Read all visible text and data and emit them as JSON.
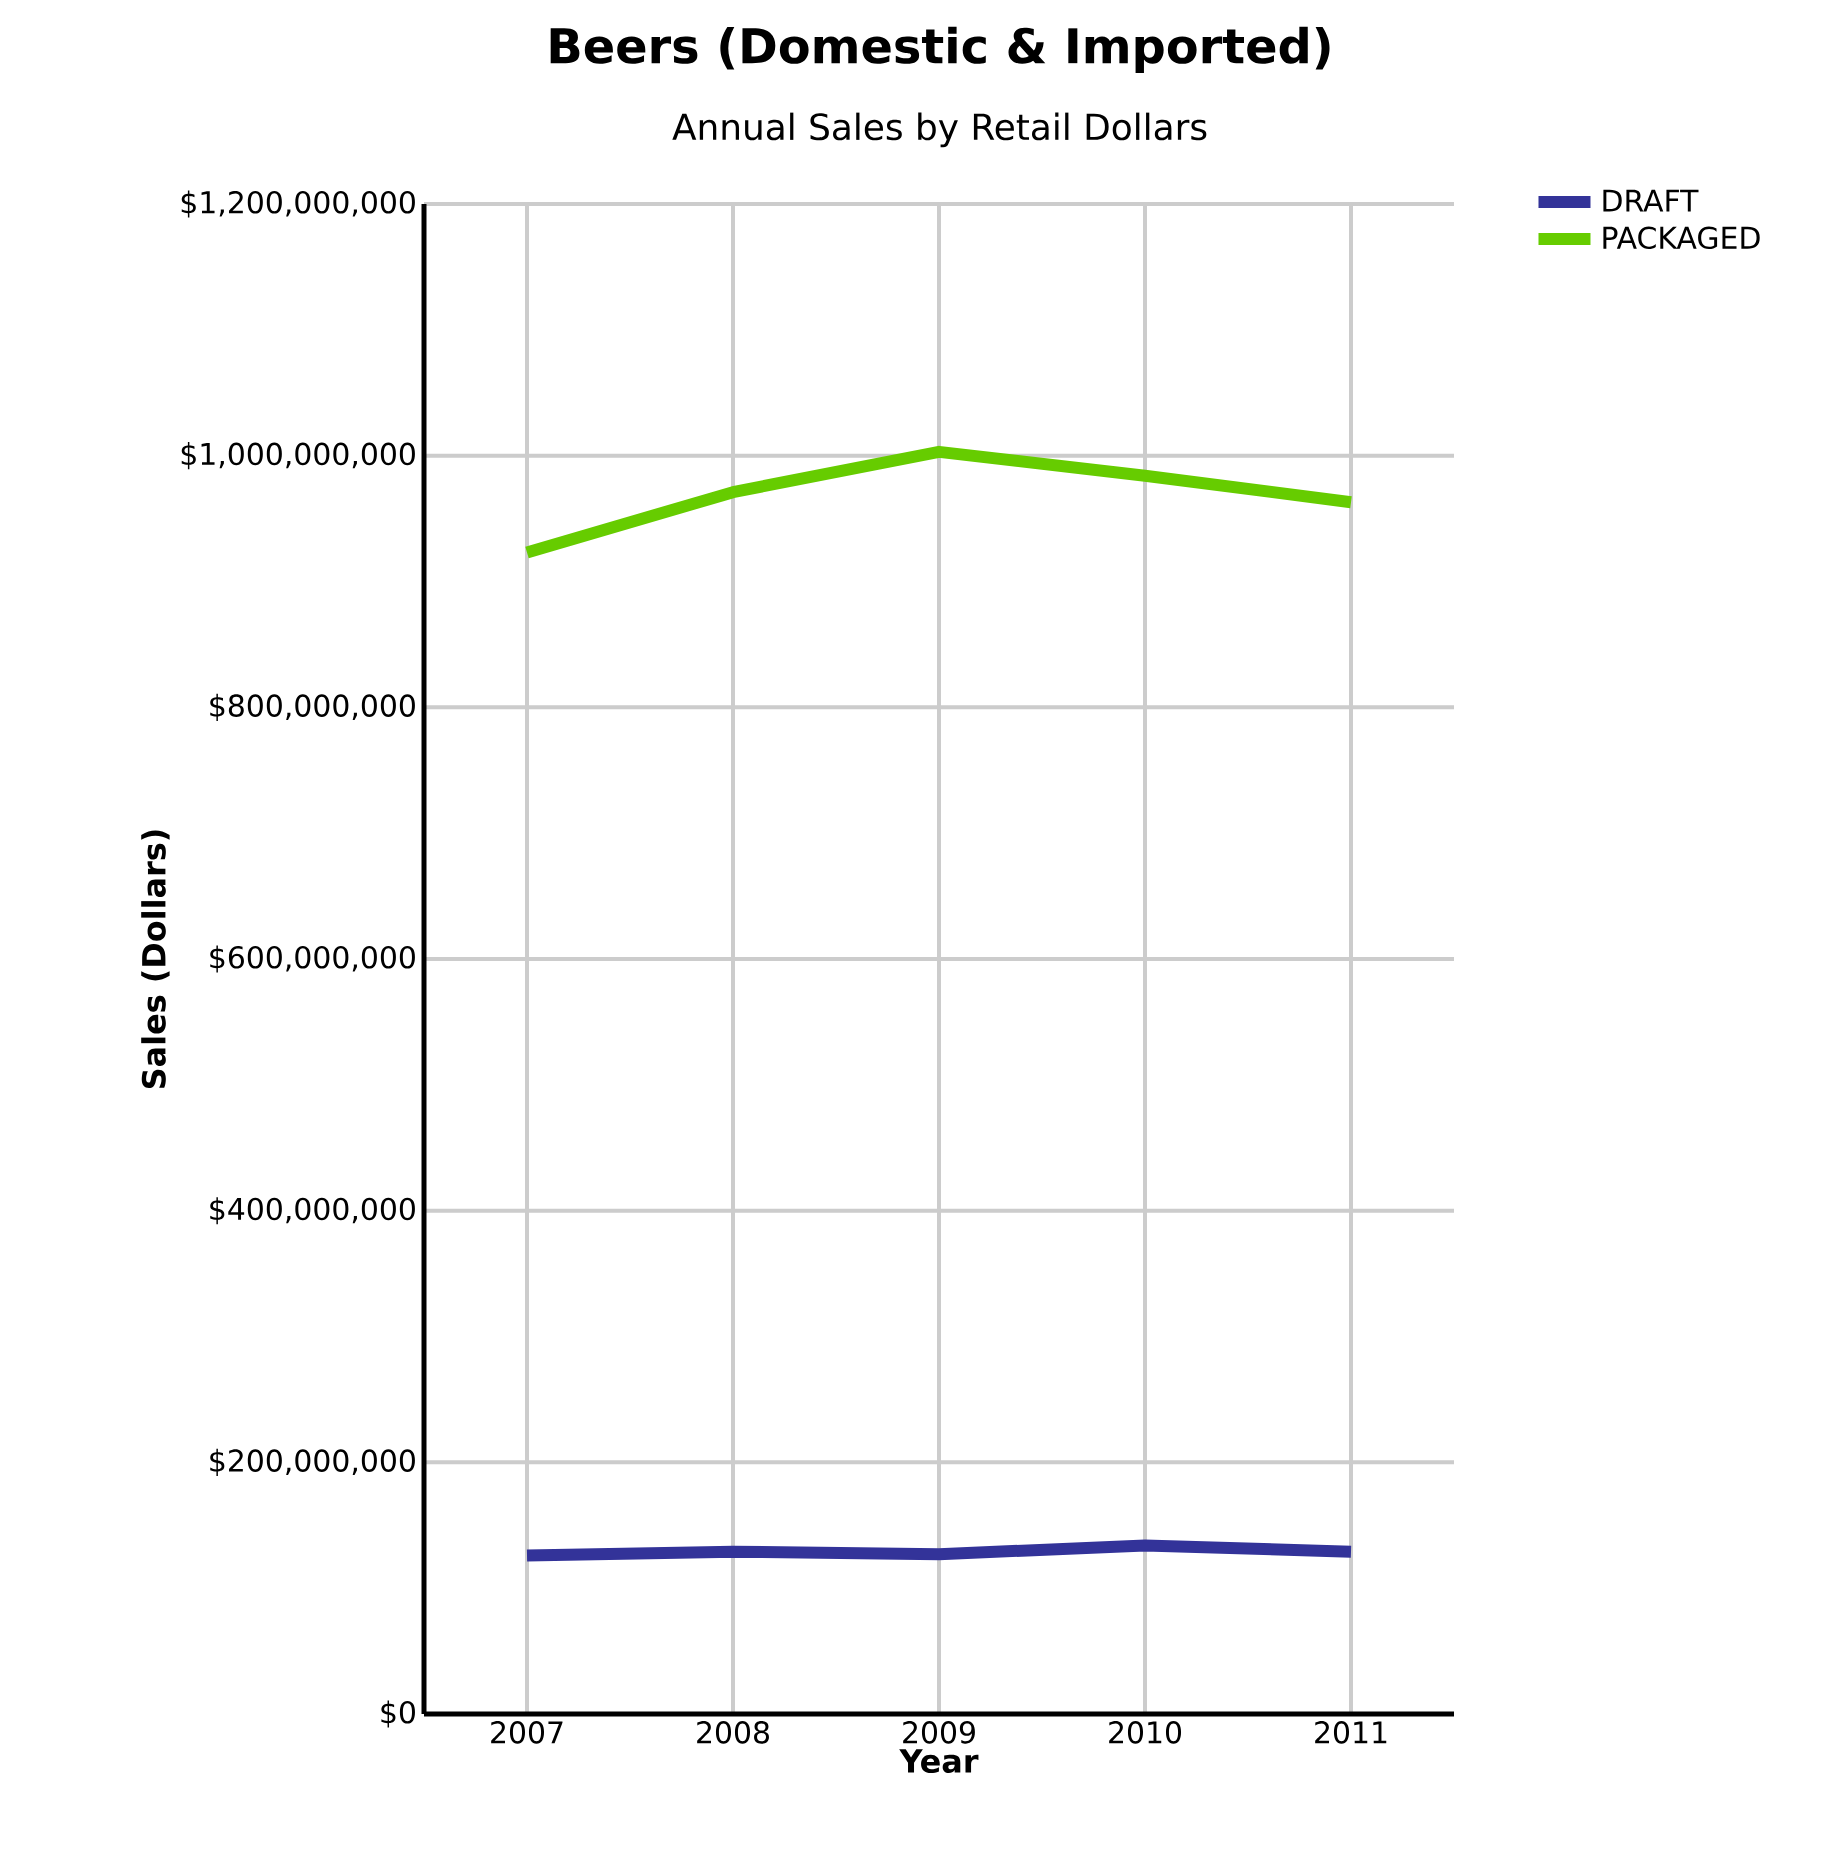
{
  "chart_data": {
    "type": "line",
    "title": "Beers (Domestic & Imported)",
    "subtitle": "Annual Sales by Retail Dollars",
    "xlabel": "Year",
    "ylabel": "Sales (Dollars)",
    "categories": [
      "2007",
      "2008",
      "2009",
      "2010",
      "2011"
    ],
    "series": [
      {
        "name": "DRAFT",
        "color": "#333399",
        "values": [
          126000000,
          129000000,
          127000000,
          134000000,
          129000000
        ]
      },
      {
        "name": "PACKAGED",
        "color": "#66cc00",
        "values": [
          923000000,
          971000000,
          1003000000,
          984000000,
          963000000
        ]
      }
    ],
    "ylim": [
      0,
      1200000000
    ],
    "yticks": [
      {
        "value": 0,
        "label": "$0"
      },
      {
        "value": 200000000,
        "label": "$200,000,000"
      },
      {
        "value": 400000000,
        "label": "$400,000,000"
      },
      {
        "value": 600000000,
        "label": "$600,000,000"
      },
      {
        "value": 800000000,
        "label": "$800,000,000"
      },
      {
        "value": 1000000000,
        "label": "$1,000,000,000"
      },
      {
        "value": 1200000000,
        "label": "$1,200,000,000"
      }
    ],
    "grid": true,
    "legend": "top right",
    "marker": "none",
    "line_style": "solid"
  }
}
